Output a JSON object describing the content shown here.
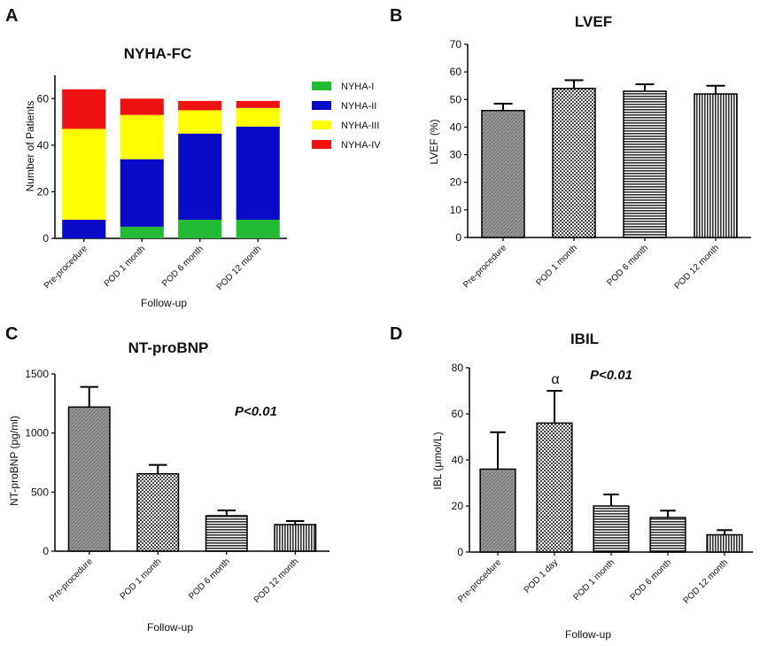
{
  "colors": {
    "nyha_i": "#22bb33",
    "nyha_ii": "#0a0ac8",
    "nyha_iii": "#ffff00",
    "nyha_iv": "#ee1111",
    "bar_grey": "#8a8a8a",
    "bar_dark": "#4a4a4a"
  },
  "chart_data": [
    {
      "panel": "A",
      "type": "bar",
      "stacked": true,
      "title": "NYHA-FC",
      "xlabel": "Follow-up",
      "ylabel": "Number of Patients",
      "ylim": [
        0,
        70
      ],
      "yticks": [
        "0",
        "20",
        "40",
        "60"
      ],
      "categories": [
        "Pre-procedure",
        "POD 1 month",
        "POD 6 month",
        "POD 12 month"
      ],
      "series": [
        {
          "name": "NYHA-I",
          "values": [
            0,
            5,
            8,
            8
          ]
        },
        {
          "name": "NYHA-II",
          "values": [
            8,
            29,
            37,
            40
          ]
        },
        {
          "name": "NYHA-III",
          "values": [
            39,
            19,
            10,
            8
          ]
        },
        {
          "name": "NYHA-IV",
          "values": [
            17,
            7,
            4,
            3
          ]
        }
      ],
      "legend_position": "right"
    },
    {
      "panel": "B",
      "type": "bar",
      "title": "LVEF",
      "xlabel": "",
      "ylabel": "LVEF (%)",
      "ylim": [
        0,
        70
      ],
      "yticks": [
        "0",
        "10",
        "20",
        "30",
        "40",
        "50",
        "60",
        "70"
      ],
      "categories": [
        "Pre-procedure",
        "POD 1 month",
        "POD 6 month",
        "POD 12 month"
      ],
      "values": [
        46,
        54,
        53,
        52
      ],
      "errors": [
        2.5,
        3,
        2.5,
        3
      ]
    },
    {
      "panel": "C",
      "type": "bar",
      "title": "NT-proBNP",
      "xlabel": "Follow-up",
      "ylabel": "NT-proBNP (pg/ml)",
      "ylim": [
        0,
        1500
      ],
      "yticks": [
        "0",
        "500",
        "1000",
        "1500"
      ],
      "categories": [
        "Pre-procedure",
        "POD 1 month",
        "POD 6 month",
        "POD 12 month"
      ],
      "values": [
        1220,
        655,
        300,
        225
      ],
      "errors": [
        170,
        75,
        45,
        30
      ],
      "annotation": "P<0.01"
    },
    {
      "panel": "D",
      "type": "bar",
      "title": "IBIL",
      "xlabel": "Follow-up",
      "ylabel": "IBL (μmol/L)",
      "ylim": [
        0,
        80
      ],
      "yticks": [
        "0",
        "20",
        "40",
        "60",
        "80"
      ],
      "categories": [
        "Pre-procedure",
        "POD 1 day",
        "POD 1 month",
        "POD 6 month",
        "POD 12 month"
      ],
      "values": [
        36,
        56,
        20,
        15,
        7.5
      ],
      "errors": [
        16,
        14,
        5,
        3,
        2
      ],
      "annotation": "P<0.01",
      "marker": "α"
    }
  ]
}
